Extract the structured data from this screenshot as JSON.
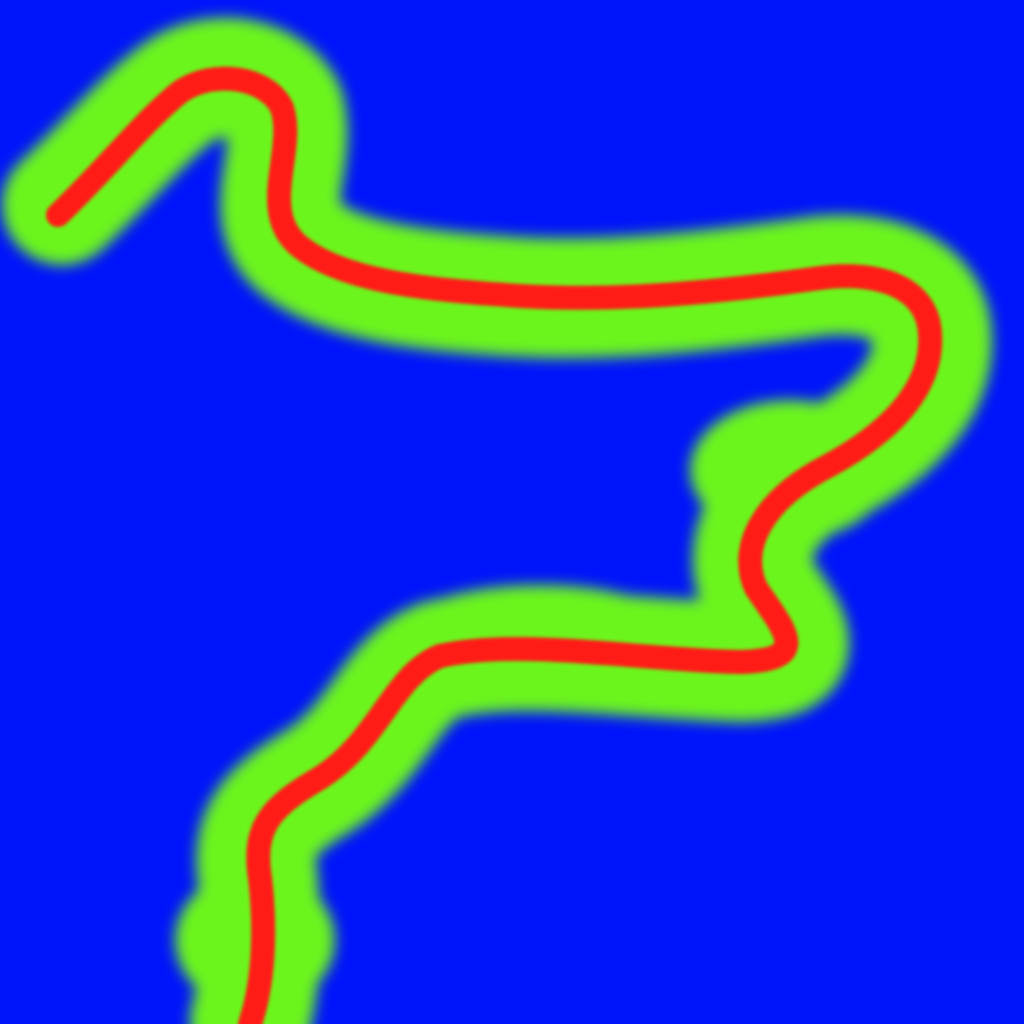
{
  "colors": {
    "background": "#0014fb",
    "region": "#6cf51e",
    "centerline": "#ff1a14"
  },
  "legend": []
}
